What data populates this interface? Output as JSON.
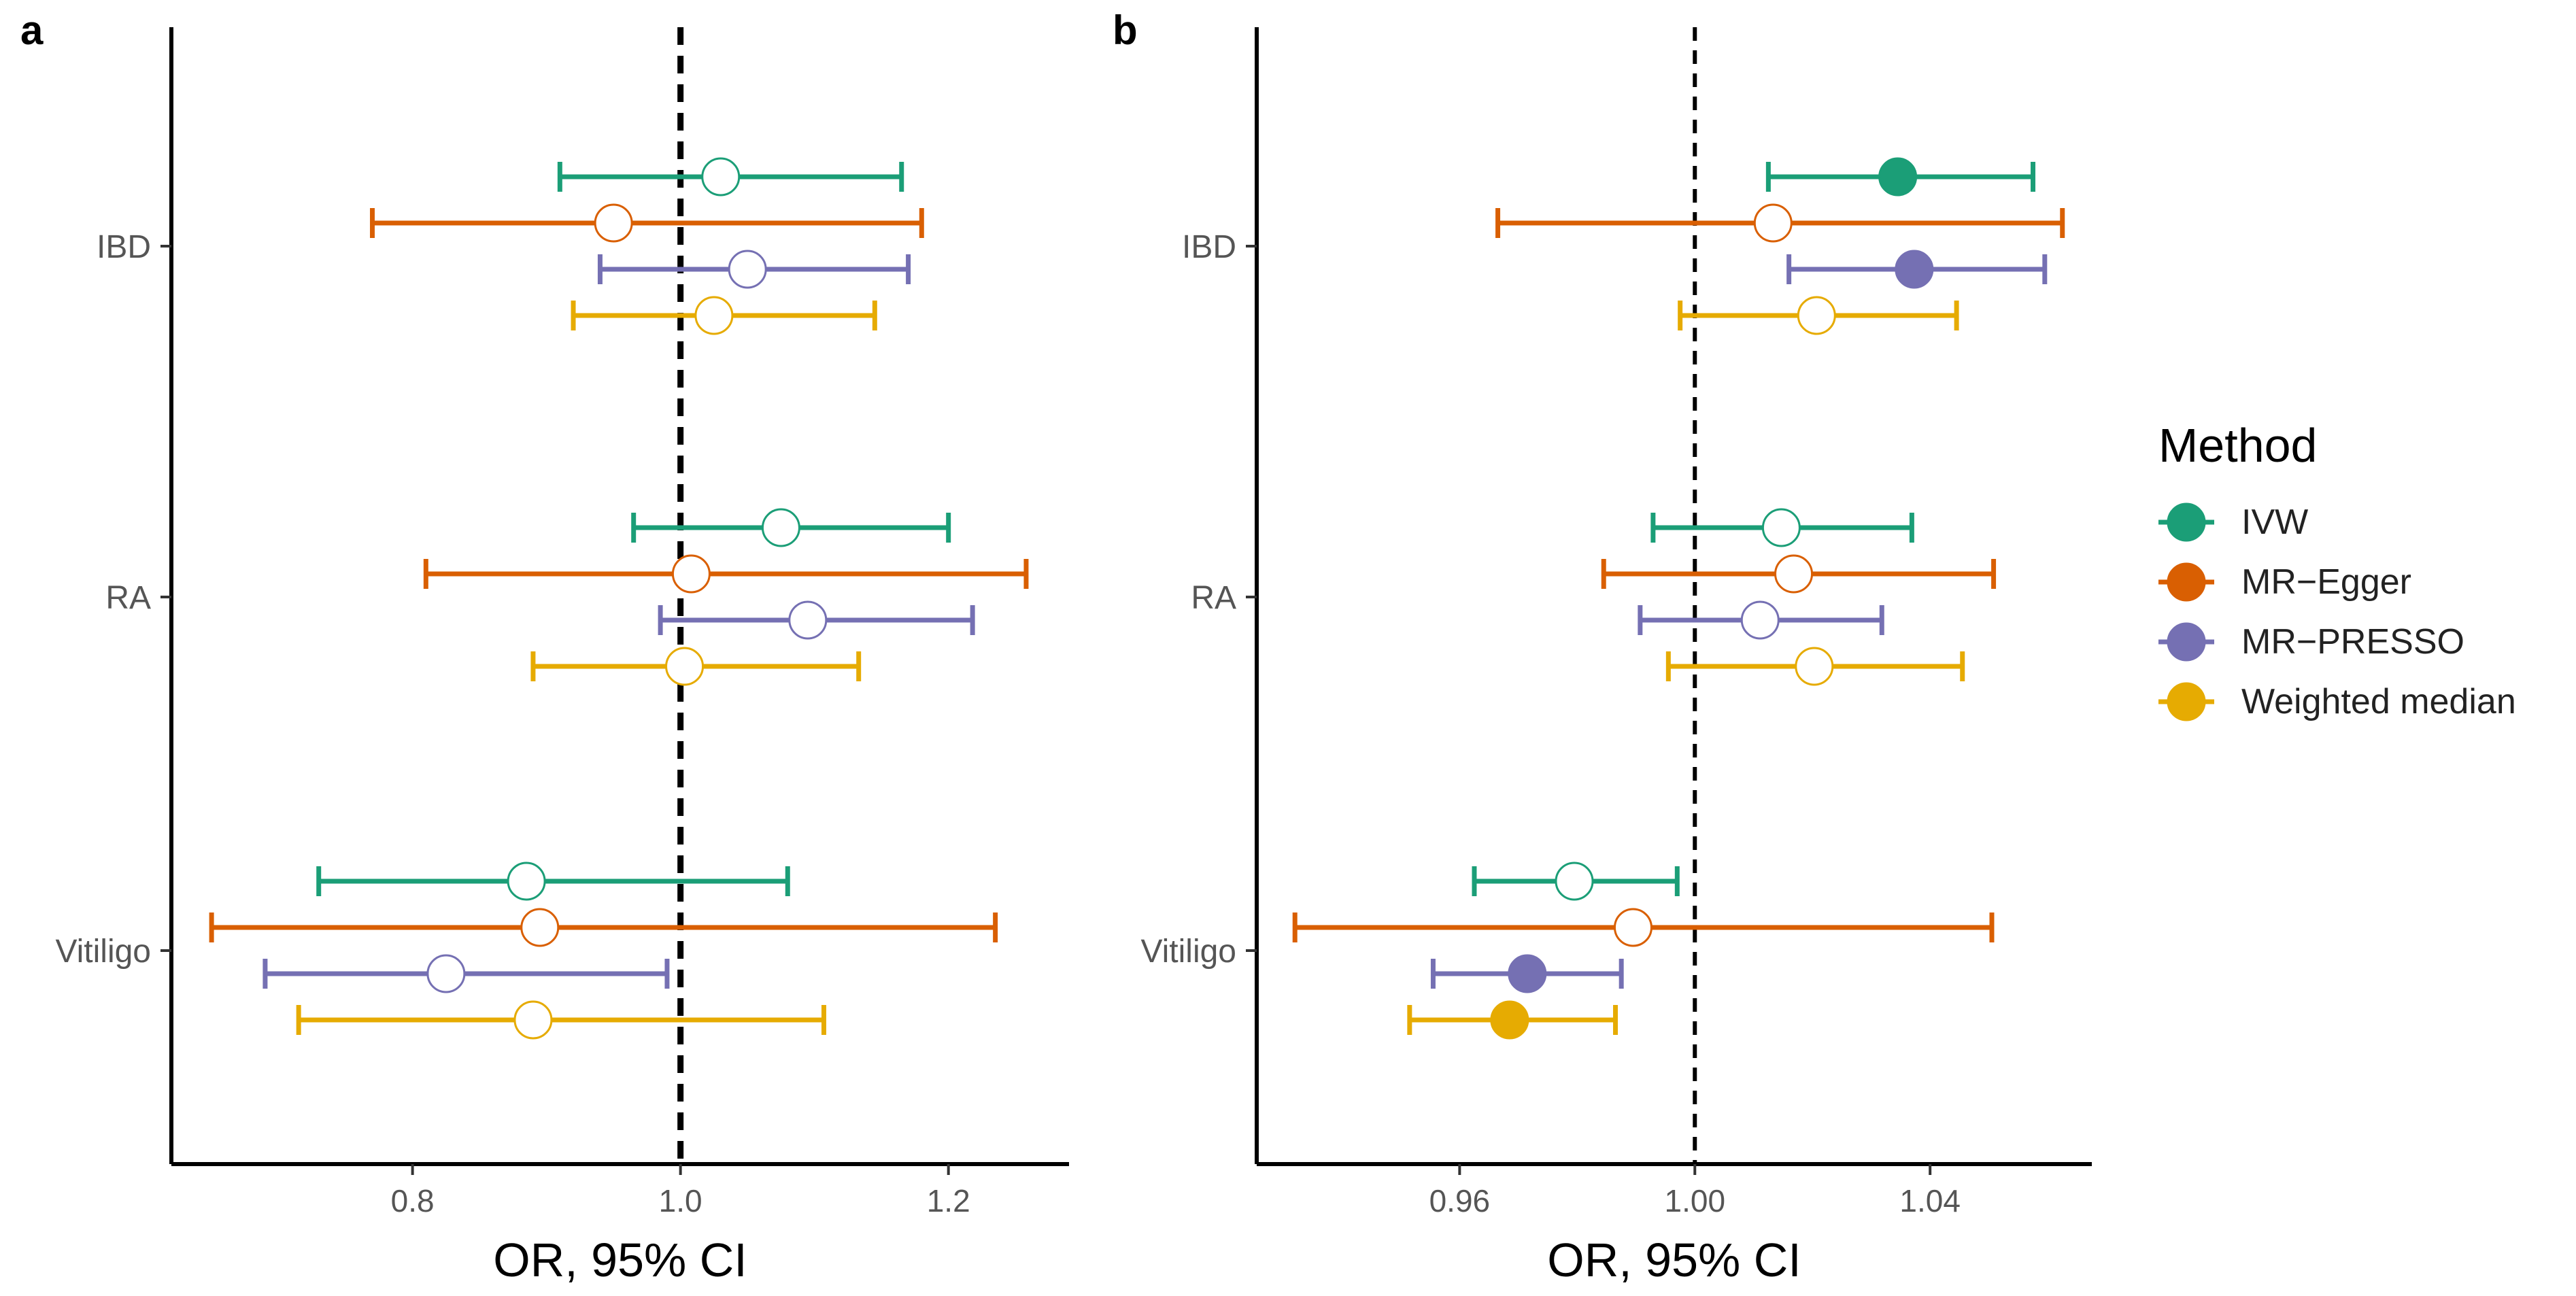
{
  "method_colors": {
    "IVW": "#1b9e77",
    "MR-Egger": "#d95f02",
    "MR-PRESSO": "#7570b3",
    "Weighted median": "#e6ab02"
  },
  "legend": {
    "title": "Method",
    "items": [
      {
        "label": "IVW",
        "method": "IVW"
      },
      {
        "label": "MR−Egger",
        "method": "MR-Egger"
      },
      {
        "label": "MR−PRESSO",
        "method": "MR-PRESSO"
      },
      {
        "label": "Weighted median",
        "method": "Weighted median"
      }
    ]
  },
  "chart_data": [
    {
      "panel_label": "a",
      "type": "forest",
      "xlabel": "OR, 95% CI",
      "xlim": [
        0.62,
        1.29
      ],
      "reference_line": 1.0,
      "xticks": [
        {
          "value": 0.8,
          "label": "0.8"
        },
        {
          "value": 1.0,
          "label": "1.0"
        },
        {
          "value": 1.2,
          "label": "1.2"
        }
      ],
      "categories": [
        "IBD",
        "RA",
        "Vitiligo"
      ],
      "points": [
        {
          "category": "IBD",
          "method": "IVW",
          "or": 1.03,
          "lower": 0.91,
          "upper": 1.165,
          "significant": false
        },
        {
          "category": "IBD",
          "method": "MR-Egger",
          "or": 0.95,
          "lower": 0.77,
          "upper": 1.18,
          "significant": false
        },
        {
          "category": "IBD",
          "method": "MR-PRESSO",
          "or": 1.05,
          "lower": 0.94,
          "upper": 1.17,
          "significant": false
        },
        {
          "category": "IBD",
          "method": "Weighted median",
          "or": 1.025,
          "lower": 0.92,
          "upper": 1.145,
          "significant": false
        },
        {
          "category": "RA",
          "method": "IVW",
          "or": 1.075,
          "lower": 0.965,
          "upper": 1.2,
          "significant": false
        },
        {
          "category": "RA",
          "method": "MR-Egger",
          "or": 1.008,
          "lower": 0.81,
          "upper": 1.258,
          "significant": false
        },
        {
          "category": "RA",
          "method": "MR-PRESSO",
          "or": 1.095,
          "lower": 0.985,
          "upper": 1.218,
          "significant": false
        },
        {
          "category": "RA",
          "method": "Weighted median",
          "or": 1.003,
          "lower": 0.89,
          "upper": 1.133,
          "significant": false
        },
        {
          "category": "Vitiligo",
          "method": "IVW",
          "or": 0.885,
          "lower": 0.73,
          "upper": 1.08,
          "significant": false
        },
        {
          "category": "Vitiligo",
          "method": "MR-Egger",
          "or": 0.895,
          "lower": 0.65,
          "upper": 1.235,
          "significant": false
        },
        {
          "category": "Vitiligo",
          "method": "MR-PRESSO",
          "or": 0.825,
          "lower": 0.69,
          "upper": 0.99,
          "significant": false
        },
        {
          "category": "Vitiligo",
          "method": "Weighted median",
          "or": 0.89,
          "lower": 0.715,
          "upper": 1.107,
          "significant": false
        }
      ]
    },
    {
      "panel_label": "b",
      "type": "forest",
      "xlabel": "OR, 95% CI",
      "xlim": [
        0.9255,
        1.0675
      ],
      "reference_line": 1.0,
      "xticks": [
        {
          "value": 0.96,
          "label": "0.96"
        },
        {
          "value": 1.0,
          "label": "1.00"
        },
        {
          "value": 1.04,
          "label": "1.04"
        }
      ],
      "categories": [
        "IBD",
        "RA",
        "Vitiligo"
      ],
      "points": [
        {
          "category": "IBD",
          "method": "IVW",
          "or": 1.0345,
          "lower": 1.0125,
          "upper": 1.0575,
          "significant": true
        },
        {
          "category": "IBD",
          "method": "MR-Egger",
          "or": 1.0133,
          "lower": 0.9665,
          "upper": 1.0625,
          "significant": false
        },
        {
          "category": "IBD",
          "method": "MR-PRESSO",
          "or": 1.0373,
          "lower": 1.016,
          "upper": 1.0595,
          "significant": true
        },
        {
          "category": "IBD",
          "method": "Weighted median",
          "or": 1.0207,
          "lower": 0.9975,
          "upper": 1.0445,
          "significant": false
        },
        {
          "category": "RA",
          "method": "IVW",
          "or": 1.0147,
          "lower": 0.9929,
          "upper": 1.0369,
          "significant": false
        },
        {
          "category": "RA",
          "method": "MR-Egger",
          "or": 1.0168,
          "lower": 0.9845,
          "upper": 1.0508,
          "significant": false
        },
        {
          "category": "RA",
          "method": "MR-PRESSO",
          "or": 1.0111,
          "lower": 0.9907,
          "upper": 1.0318,
          "significant": false
        },
        {
          "category": "RA",
          "method": "Weighted median",
          "or": 1.0203,
          "lower": 0.9955,
          "upper": 1.0455,
          "significant": false
        },
        {
          "category": "Vitiligo",
          "method": "IVW",
          "or": 0.9795,
          "lower": 0.9625,
          "upper": 0.997,
          "significant": false
        },
        {
          "category": "Vitiligo",
          "method": "MR-Egger",
          "or": 0.9895,
          "lower": 0.932,
          "upper": 1.0505,
          "significant": false
        },
        {
          "category": "Vitiligo",
          "method": "MR-PRESSO",
          "or": 0.9715,
          "lower": 0.9555,
          "upper": 0.9875,
          "significant": true
        },
        {
          "category": "Vitiligo",
          "method": "Weighted median",
          "or": 0.9685,
          "lower": 0.9515,
          "upper": 0.9865,
          "significant": true
        }
      ]
    }
  ]
}
